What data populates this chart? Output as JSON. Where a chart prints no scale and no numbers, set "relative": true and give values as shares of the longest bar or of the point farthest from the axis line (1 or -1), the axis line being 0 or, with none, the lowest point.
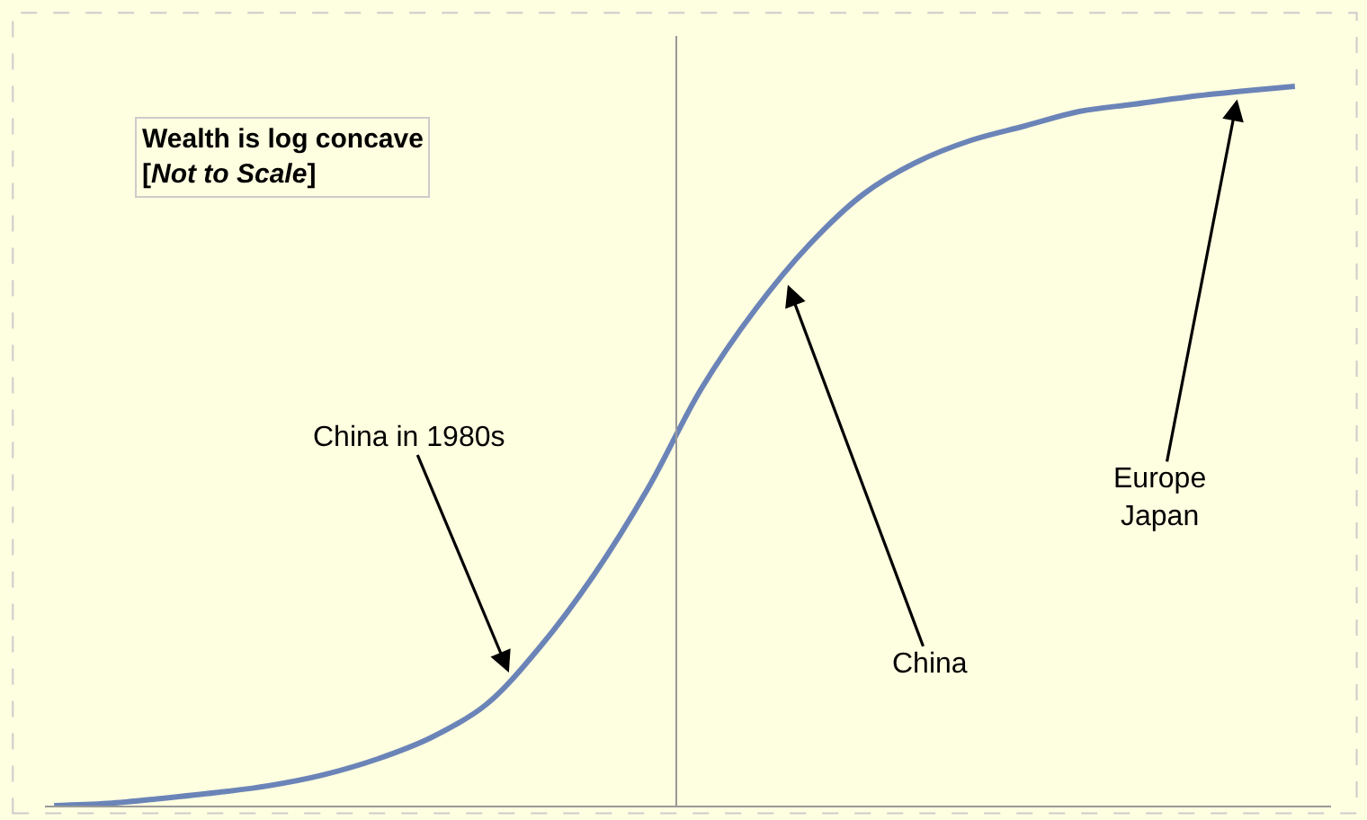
{
  "chart_data": {
    "type": "line",
    "relative": true,
    "title": "Wealth is log concave",
    "subtitle": "[Not to Scale]",
    "categories": [
      null,
      null,
      null,
      null,
      null,
      null,
      null,
      null,
      null,
      null,
      null,
      null,
      null,
      null,
      null,
      null,
      null,
      null,
      null,
      null,
      null,
      null,
      null,
      null
    ],
    "series": [
      {
        "color": "#6b84b8",
        "values": [
          0,
          0.003,
          0.01,
          0.018,
          0.028,
          0.043,
          0.065,
          0.095,
          0.14,
          0.22,
          0.32,
          0.44,
          0.58,
          0.69,
          0.78,
          0.85,
          0.895,
          0.925,
          0.945,
          0.965,
          0.975,
          0.985,
          0.993,
          1
        ]
      }
    ],
    "annotations": [
      "China in 1980s",
      "China",
      "Europe\nJapan"
    ],
    "marker": "none",
    "line_style": "solid",
    "grid": false
  }
}
